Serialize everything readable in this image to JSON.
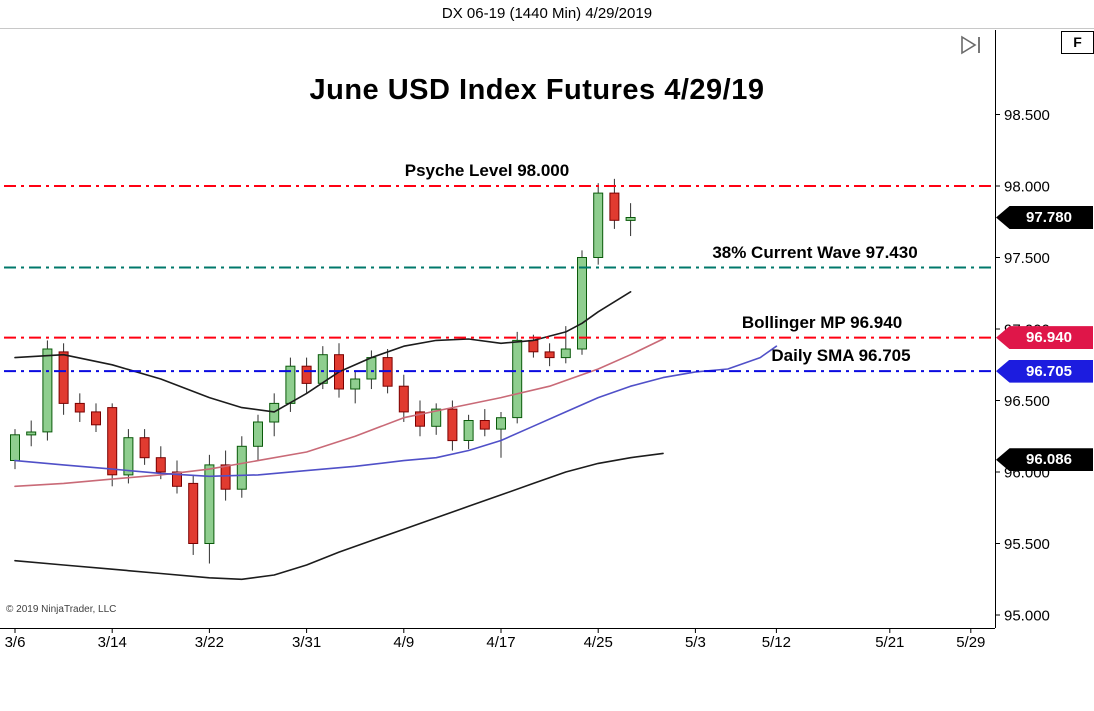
{
  "window_title": "DX 06-19 (1440 Min)  4/29/2019",
  "chart": {
    "title": "June USD Index Futures 4/29/19",
    "copyright": "© 2019 NinjaTrader, LLC",
    "f_button_label": "F"
  },
  "chart_data": {
    "type": "candlestick",
    "instrument": "DX 06-19",
    "interval": "1440 Min",
    "session_date": "4/29/2019",
    "title": "June USD Index Futures 4/29/19",
    "last_price": 97.78,
    "y_axis": {
      "min": 94.9,
      "max": 99.08,
      "ticks": [
        {
          "label": "98.500",
          "value": 98.5
        },
        {
          "label": "98.000",
          "value": 98.0
        },
        {
          "label": "97.500",
          "value": 97.5
        },
        {
          "label": "97.000",
          "value": 97.0
        },
        {
          "label": "96.500",
          "value": 96.5
        },
        {
          "label": "96.000",
          "value": 96.0
        },
        {
          "label": "95.500",
          "value": 95.5
        },
        {
          "label": "95.000",
          "value": 95.0
        }
      ]
    },
    "x_axis": {
      "labels": [
        {
          "label": "3/6",
          "bar": 0
        },
        {
          "label": "3/14",
          "bar": 6
        },
        {
          "label": "3/22",
          "bar": 12
        },
        {
          "label": "3/31",
          "bar": 18
        },
        {
          "label": "4/9",
          "bar": 24
        },
        {
          "label": "4/17",
          "bar": 30
        },
        {
          "label": "4/25",
          "bar": 36
        },
        {
          "label": "5/3",
          "bar": 42
        },
        {
          "label": "5/12",
          "bar": 47
        },
        {
          "label": "5/21",
          "bar": 54
        },
        {
          "label": "5/29",
          "bar": 59
        }
      ]
    },
    "levels": [
      {
        "name": "psyche-level",
        "label": "Psyche Level 98.000",
        "price": 98.0,
        "color": "#ff0012",
        "label_cx": 487
      },
      {
        "name": "wave-38",
        "label": "38% Current Wave 97.430",
        "price": 97.43,
        "color": "#00786b",
        "label_cx": 815
      },
      {
        "name": "bollinger-mp-level",
        "label": "Bollinger MP 96.940",
        "price": 96.94,
        "color": "#ff0012",
        "label_cx": 822
      },
      {
        "name": "daily-sma-level",
        "label": "Daily SMA 96.705",
        "price": 96.705,
        "color": "#0a0ae0",
        "label_cx": 841
      }
    ],
    "badges": [
      {
        "name": "last-price-badge",
        "label": "97.780",
        "price": 97.78,
        "color": "#000000"
      },
      {
        "name": "bollinger-mp-badge",
        "label": "96.940",
        "price": 96.94,
        "color": "#df1649"
      },
      {
        "name": "daily-sma-badge",
        "label": "96.705",
        "price": 96.705,
        "color": "#1c1cdf"
      },
      {
        "name": "lower-band-badge",
        "label": "96.086",
        "price": 96.086,
        "color": "#000000"
      }
    ],
    "colors": {
      "up_fill": "#8fce8f",
      "up_stroke": "#0a5a0a",
      "down_fill": "#e13b30",
      "down_stroke": "#7a0000",
      "wick": "#303030"
    },
    "candles": [
      [
        "3/6",
        96.08,
        96.3,
        96.02,
        96.26
      ],
      [
        "3/7",
        96.26,
        96.36,
        96.18,
        96.28
      ],
      [
        "3/8",
        96.28,
        96.92,
        96.22,
        96.86
      ],
      [
        "3/11",
        96.84,
        96.9,
        96.4,
        96.48
      ],
      [
        "3/12",
        96.48,
        96.55,
        96.35,
        96.42
      ],
      [
        "3/13",
        96.42,
        96.48,
        96.28,
        96.33
      ],
      [
        "3/14",
        96.45,
        96.48,
        95.9,
        95.98
      ],
      [
        "3/15",
        95.98,
        96.3,
        95.92,
        96.24
      ],
      [
        "3/18",
        96.24,
        96.3,
        96.05,
        96.1
      ],
      [
        "3/19",
        96.1,
        96.18,
        95.95,
        96.0
      ],
      [
        "3/20",
        96.0,
        96.08,
        95.85,
        95.9
      ],
      [
        "3/21",
        95.92,
        95.98,
        95.42,
        95.5
      ],
      [
        "3/22",
        95.5,
        96.12,
        95.36,
        96.05
      ],
      [
        "3/25",
        96.05,
        96.15,
        95.8,
        95.88
      ],
      [
        "3/26",
        95.88,
        96.25,
        95.82,
        96.18
      ],
      [
        "3/27",
        96.18,
        96.4,
        96.08,
        96.35
      ],
      [
        "3/28",
        96.35,
        96.55,
        96.25,
        96.48
      ],
      [
        "3/29",
        96.48,
        96.8,
        96.42,
        96.74
      ],
      [
        "4/1",
        96.74,
        96.8,
        96.55,
        96.62
      ],
      [
        "4/2",
        96.62,
        96.88,
        96.58,
        96.82
      ],
      [
        "4/3",
        96.82,
        96.9,
        96.52,
        96.58
      ],
      [
        "4/4",
        96.58,
        96.7,
        96.48,
        96.65
      ],
      [
        "4/5",
        96.65,
        96.85,
        96.58,
        96.8
      ],
      [
        "4/8",
        96.8,
        96.86,
        96.55,
        96.6
      ],
      [
        "4/9",
        96.6,
        96.68,
        96.35,
        96.42
      ],
      [
        "4/10",
        96.42,
        96.5,
        96.25,
        96.32
      ],
      [
        "4/11",
        96.32,
        96.48,
        96.26,
        96.44
      ],
      [
        "4/12",
        96.44,
        96.5,
        96.15,
        96.22
      ],
      [
        "4/15",
        96.22,
        96.4,
        96.16,
        96.36
      ],
      [
        "4/16",
        96.36,
        96.44,
        96.25,
        96.3
      ],
      [
        "4/17",
        96.3,
        96.42,
        96.1,
        96.38
      ],
      [
        "4/18",
        96.38,
        96.98,
        96.34,
        96.92
      ],
      [
        "4/19",
        96.92,
        96.96,
        96.8,
        96.84
      ],
      [
        "4/22",
        96.84,
        96.9,
        96.74,
        96.8
      ],
      [
        "4/23",
        96.8,
        97.02,
        96.76,
        96.86
      ],
      [
        "4/24",
        96.86,
        97.55,
        96.82,
        97.5
      ],
      [
        "4/25",
        97.5,
        98.02,
        97.45,
        97.95
      ],
      [
        "4/26",
        97.95,
        98.05,
        97.7,
        97.76
      ],
      [
        "4/29",
        97.76,
        97.88,
        97.65,
        97.78
      ]
    ],
    "overlays": [
      {
        "name": "bollinger-upper-band",
        "color": "#1c1c1c",
        "width": 1.6,
        "points": [
          [
            0,
            96.8
          ],
          [
            3,
            96.82
          ],
          [
            6,
            96.75
          ],
          [
            9,
            96.65
          ],
          [
            12,
            96.52
          ],
          [
            14,
            96.45
          ],
          [
            16,
            96.42
          ],
          [
            18,
            96.55
          ],
          [
            20,
            96.7
          ],
          [
            22,
            96.8
          ],
          [
            24,
            96.88
          ],
          [
            26,
            96.92
          ],
          [
            28,
            96.93
          ],
          [
            30,
            96.9
          ],
          [
            32,
            96.92
          ],
          [
            34,
            96.98
          ],
          [
            35,
            97.04
          ],
          [
            36,
            97.12
          ],
          [
            37,
            97.19
          ],
          [
            38,
            97.26
          ]
        ]
      },
      {
        "name": "bollinger-midline",
        "color": "#c96a77",
        "width": 1.6,
        "points": [
          [
            0,
            95.9
          ],
          [
            3,
            95.92
          ],
          [
            6,
            95.95
          ],
          [
            9,
            95.98
          ],
          [
            12,
            96.02
          ],
          [
            15,
            96.08
          ],
          [
            18,
            96.14
          ],
          [
            21,
            96.25
          ],
          [
            24,
            96.38
          ],
          [
            27,
            96.45
          ],
          [
            30,
            96.52
          ],
          [
            33,
            96.6
          ],
          [
            36,
            96.72
          ],
          [
            38,
            96.82
          ],
          [
            40,
            96.93
          ]
        ]
      },
      {
        "name": "daily-sma-line",
        "color": "#5050c8",
        "width": 1.6,
        "points": [
          [
            0,
            96.08
          ],
          [
            3,
            96.05
          ],
          [
            6,
            96.02
          ],
          [
            9,
            95.99
          ],
          [
            12,
            95.97
          ],
          [
            15,
            95.98
          ],
          [
            18,
            96.01
          ],
          [
            21,
            96.04
          ],
          [
            24,
            96.08
          ],
          [
            26,
            96.1
          ],
          [
            28,
            96.15
          ],
          [
            30,
            96.22
          ],
          [
            32,
            96.32
          ],
          [
            34,
            96.42
          ],
          [
            36,
            96.52
          ],
          [
            38,
            96.6
          ],
          [
            40,
            96.66
          ],
          [
            42,
            96.7
          ],
          [
            44,
            96.72
          ],
          [
            46,
            96.8
          ],
          [
            47,
            96.88
          ]
        ]
      },
      {
        "name": "bollinger-lower-band",
        "color": "#1c1c1c",
        "width": 1.6,
        "points": [
          [
            0,
            95.38
          ],
          [
            3,
            95.35
          ],
          [
            6,
            95.32
          ],
          [
            9,
            95.29
          ],
          [
            12,
            95.26
          ],
          [
            14,
            95.25
          ],
          [
            16,
            95.28
          ],
          [
            18,
            95.35
          ],
          [
            20,
            95.44
          ],
          [
            22,
            95.52
          ],
          [
            24,
            95.6
          ],
          [
            26,
            95.68
          ],
          [
            28,
            95.76
          ],
          [
            30,
            95.84
          ],
          [
            32,
            95.92
          ],
          [
            34,
            96.0
          ],
          [
            36,
            96.06
          ],
          [
            38,
            96.1
          ],
          [
            40,
            96.13
          ]
        ]
      }
    ]
  }
}
